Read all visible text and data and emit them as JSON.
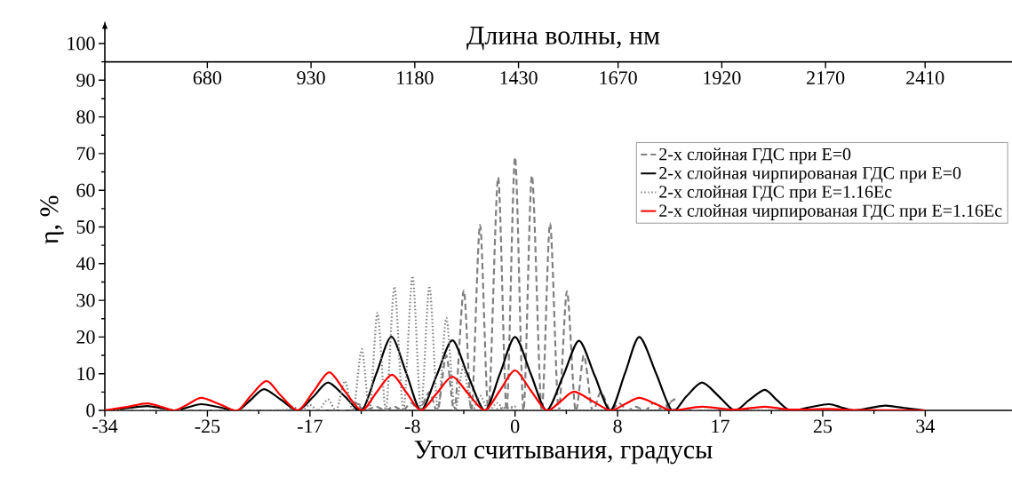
{
  "chart_data": {
    "type": "line",
    "xlabel": "Угол считывания, градусы",
    "ylabel": "η, %",
    "x2label": "Длина волны, нм",
    "xlim": [
      -34,
      42
    ],
    "xticks": [
      -34,
      {
        "value": -25.5,
        "label": "-25"
      },
      -17,
      {
        "value": -8.5,
        "label": "-8"
      },
      0,
      {
        "value": 8.5,
        "label": "8"
      },
      17,
      {
        "value": 25.5,
        "label": "25"
      },
      34
    ],
    "x2lim": [
      433,
      2643
    ],
    "x2ticks": [
      680,
      930,
      1180,
      1430,
      1670,
      1920,
      2170,
      2410
    ],
    "ylim": [
      0,
      104
    ],
    "yticks": [
      0,
      10,
      20,
      30,
      40,
      50,
      60,
      70,
      80,
      90,
      100
    ],
    "legend": "right",
    "marker": "none",
    "grid": false,
    "series": [
      {
        "name": "2-х слойная ГДС при E=0",
        "color": "#808080",
        "line_style": "dashed",
        "x": [
          -34,
          -14,
          -13.2,
          -12.5,
          -11.5,
          -10.8,
          -10,
          -9.3,
          -8.6,
          -7.9,
          -7.1,
          -6.4,
          -5.7,
          -5.0,
          -4.25,
          -3.6,
          -2.9,
          -2.2,
          -1.4,
          -0.7,
          0,
          0.7,
          1.4,
          2.2,
          2.9,
          3.6,
          4.3,
          5.0,
          5.7,
          6.4,
          7.1,
          7.9,
          8.6,
          9.3,
          10,
          10.8,
          11.5,
          12.3,
          13.2,
          14,
          34
        ],
        "values": [
          0,
          0,
          2,
          0,
          1,
          0,
          1,
          0,
          2,
          0,
          5,
          0,
          15,
          0,
          32.7,
          0,
          50.6,
          0,
          63.5,
          0,
          69,
          0,
          64,
          0,
          51,
          0,
          32.5,
          0,
          15,
          0,
          5,
          0,
          2,
          0,
          1,
          0,
          2,
          0,
          3,
          0,
          0
        ]
      },
      {
        "name": "2-х слойная чирпированая ГДС при E=0",
        "color": "#000000",
        "line_style": "solid",
        "x": [
          -34,
          -32.2,
          -30.5,
          -29.3,
          -28.2,
          -27.1,
          -26,
          -24.5,
          -23,
          -21.9,
          -20.8,
          -19.4,
          -18,
          -16.7,
          -15.5,
          -14.1,
          -12.7,
          -11.5,
          -10.25,
          -9,
          -7.8,
          -6.5,
          -5.2,
          -3.9,
          -2.5,
          -1.25,
          0,
          1.3,
          2.6,
          4.0,
          5.3,
          6.6,
          7.9,
          9.1,
          10.3,
          11.7,
          13.0,
          14.2,
          15.5,
          16.9,
          18.2,
          19.4,
          20.7,
          21.7,
          22.8,
          24.4,
          26,
          27,
          28.1,
          29.4,
          30.7,
          32.3,
          34
        ],
        "values": [
          0,
          0.6,
          1.2,
          0.6,
          0,
          0.85,
          1.7,
          0.85,
          0,
          2.9,
          5.8,
          2.9,
          0,
          3.8,
          7.6,
          3.8,
          0,
          10,
          20.1,
          10,
          0,
          9.5,
          19.1,
          9.5,
          0,
          10,
          20,
          10,
          0,
          9.5,
          19,
          9.5,
          0,
          10,
          20,
          10,
          0,
          3.8,
          7.6,
          3.8,
          0,
          2.8,
          5.6,
          2.8,
          0,
          0.85,
          1.7,
          0.85,
          0,
          0.65,
          1.3,
          0.65,
          0
        ]
      },
      {
        "name": "2-х слойная ГДС при E=1.16Ec",
        "color": "#808080",
        "line_style": "dotted",
        "x": [
          -34,
          -20,
          -18.5,
          -17.7,
          -17,
          -16.3,
          -15.5,
          -14.8,
          -14.1,
          -13.4,
          -12.7,
          -12.05,
          -11.4,
          -10.7,
          -10.0,
          -9.25,
          -8.5,
          -7.8,
          -7.1,
          -6.4,
          -5.7,
          -5.0,
          -4.3,
          -3.6,
          -2.9,
          -2.2,
          -1.5,
          -0.8,
          0,
          0.8,
          34
        ],
        "values": [
          0,
          0,
          1,
          0,
          1.5,
          0,
          3,
          0,
          8,
          0,
          16.7,
          0,
          26.6,
          0,
          33.7,
          0,
          36.6,
          0,
          33.9,
          0,
          25.2,
          0,
          12,
          0,
          4,
          0,
          2,
          0,
          1,
          0,
          0
        ]
      },
      {
        "name": "2-х слойная чирпированая ГДС при E=1.16Ec",
        "color": "#ff0000",
        "line_style": "solid",
        "x": [
          -34,
          -32.2,
          -30.5,
          -29.3,
          -28.2,
          -27.1,
          -26,
          -24.5,
          -23,
          -21.9,
          -20.6,
          -19.4,
          -18,
          -16.7,
          -15.4,
          -14.1,
          -12.7,
          -11.5,
          -10.2,
          -9,
          -7.8,
          -6.5,
          -5.2,
          -3.9,
          -2.5,
          -1.25,
          0,
          1.3,
          2.6,
          3.8,
          4.9,
          6.4,
          7.9,
          9.1,
          10.3,
          11.7,
          13,
          15.5,
          18.2,
          20.7,
          22.8,
          26,
          28.1,
          34
        ],
        "values": [
          0,
          0.95,
          1.9,
          0.95,
          0,
          1.7,
          3.4,
          1.7,
          0,
          4,
          8,
          4,
          0,
          5.2,
          10.4,
          5.2,
          0,
          4.85,
          9.7,
          4.85,
          0,
          4.6,
          9.2,
          4.6,
          0,
          5.45,
          10.9,
          5.45,
          0,
          2.55,
          5.1,
          2.55,
          0,
          1.7,
          3.4,
          1.7,
          0,
          1,
          0.2,
          1,
          0.2,
          0.4,
          0.1,
          0
        ]
      }
    ]
  }
}
